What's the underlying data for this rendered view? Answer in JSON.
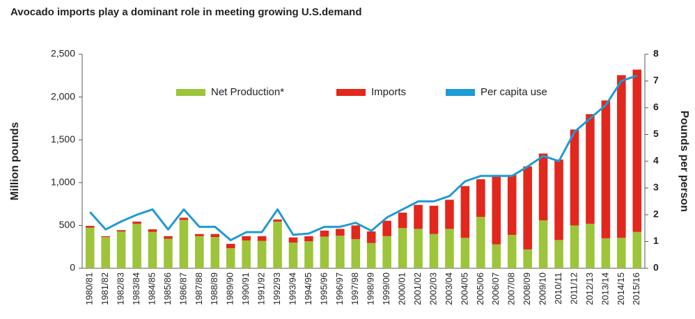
{
  "chart_data": {
    "type": "bar",
    "title": "Avocado imports play a dominant role in meeting growing U.S.demand",
    "ylabel": "Million pounds",
    "y2label": "Pounds per person",
    "categories": [
      "1980/81",
      "1981/82",
      "1982/83",
      "1983/84",
      "1984/85",
      "1985/86",
      "1986/87",
      "1987/88",
      "1988/89",
      "1989/90",
      "1990/91",
      "1991/92",
      "1992/93",
      "1993/94",
      "1994/95",
      "1995/96",
      "1996/97",
      "1997/98",
      "1998/99",
      "1999/00",
      "2000/01",
      "2001/02",
      "2002/03",
      "2003/04",
      "2004/05",
      "2005/06",
      "2006/07",
      "2007/08",
      "2008/09",
      "2009/10",
      "2010/11",
      "2011/12",
      "2012/13",
      "2013/14",
      "2014/15",
      "2015/16"
    ],
    "series": [
      {
        "name": "Net Production*",
        "color": "#9dc43b",
        "stack": true,
        "values": [
          475,
          365,
          430,
          520,
          425,
          345,
          565,
          375,
          365,
          235,
          325,
          320,
          545,
          300,
          315,
          370,
          380,
          340,
          295,
          375,
          470,
          460,
          400,
          460,
          355,
          600,
          280,
          390,
          220,
          560,
          330,
          500,
          520,
          350,
          355,
          425
        ]
      },
      {
        "name": "Imports",
        "color": "#e2271c",
        "stack": true,
        "values": [
          20,
          10,
          15,
          25,
          30,
          30,
          25,
          25,
          35,
          50,
          50,
          55,
          25,
          60,
          60,
          70,
          80,
          160,
          135,
          180,
          180,
          280,
          330,
          340,
          605,
          440,
          810,
          700,
          970,
          780,
          940,
          1120,
          1280,
          1610,
          1900,
          1895
        ]
      },
      {
        "name": "Per capita use",
        "color": "#1e9ad6",
        "type": "line",
        "axis": "y2",
        "values": [
          2.1,
          1.45,
          1.75,
          2.0,
          2.2,
          1.45,
          2.2,
          1.55,
          1.55,
          1.05,
          1.35,
          1.35,
          2.2,
          1.25,
          1.3,
          1.55,
          1.55,
          1.7,
          1.4,
          1.9,
          2.2,
          2.5,
          2.5,
          2.7,
          3.25,
          3.45,
          3.45,
          3.45,
          3.8,
          4.2,
          4.0,
          5.1,
          5.6,
          6.1,
          7.0,
          7.2
        ]
      }
    ],
    "ylim": [
      0,
      2500
    ],
    "yticks": [
      0,
      500,
      {
        "value": 1000,
        "label": "1,000"
      },
      {
        "value": 1500,
        "label": "1,500"
      },
      {
        "value": 2000,
        "label": "2,000"
      },
      {
        "value": 2500,
        "label": "2,500"
      }
    ],
    "y2lim": [
      0,
      8
    ],
    "y2ticks": [
      0,
      1,
      2,
      3,
      4,
      5,
      6,
      7,
      8
    ]
  }
}
